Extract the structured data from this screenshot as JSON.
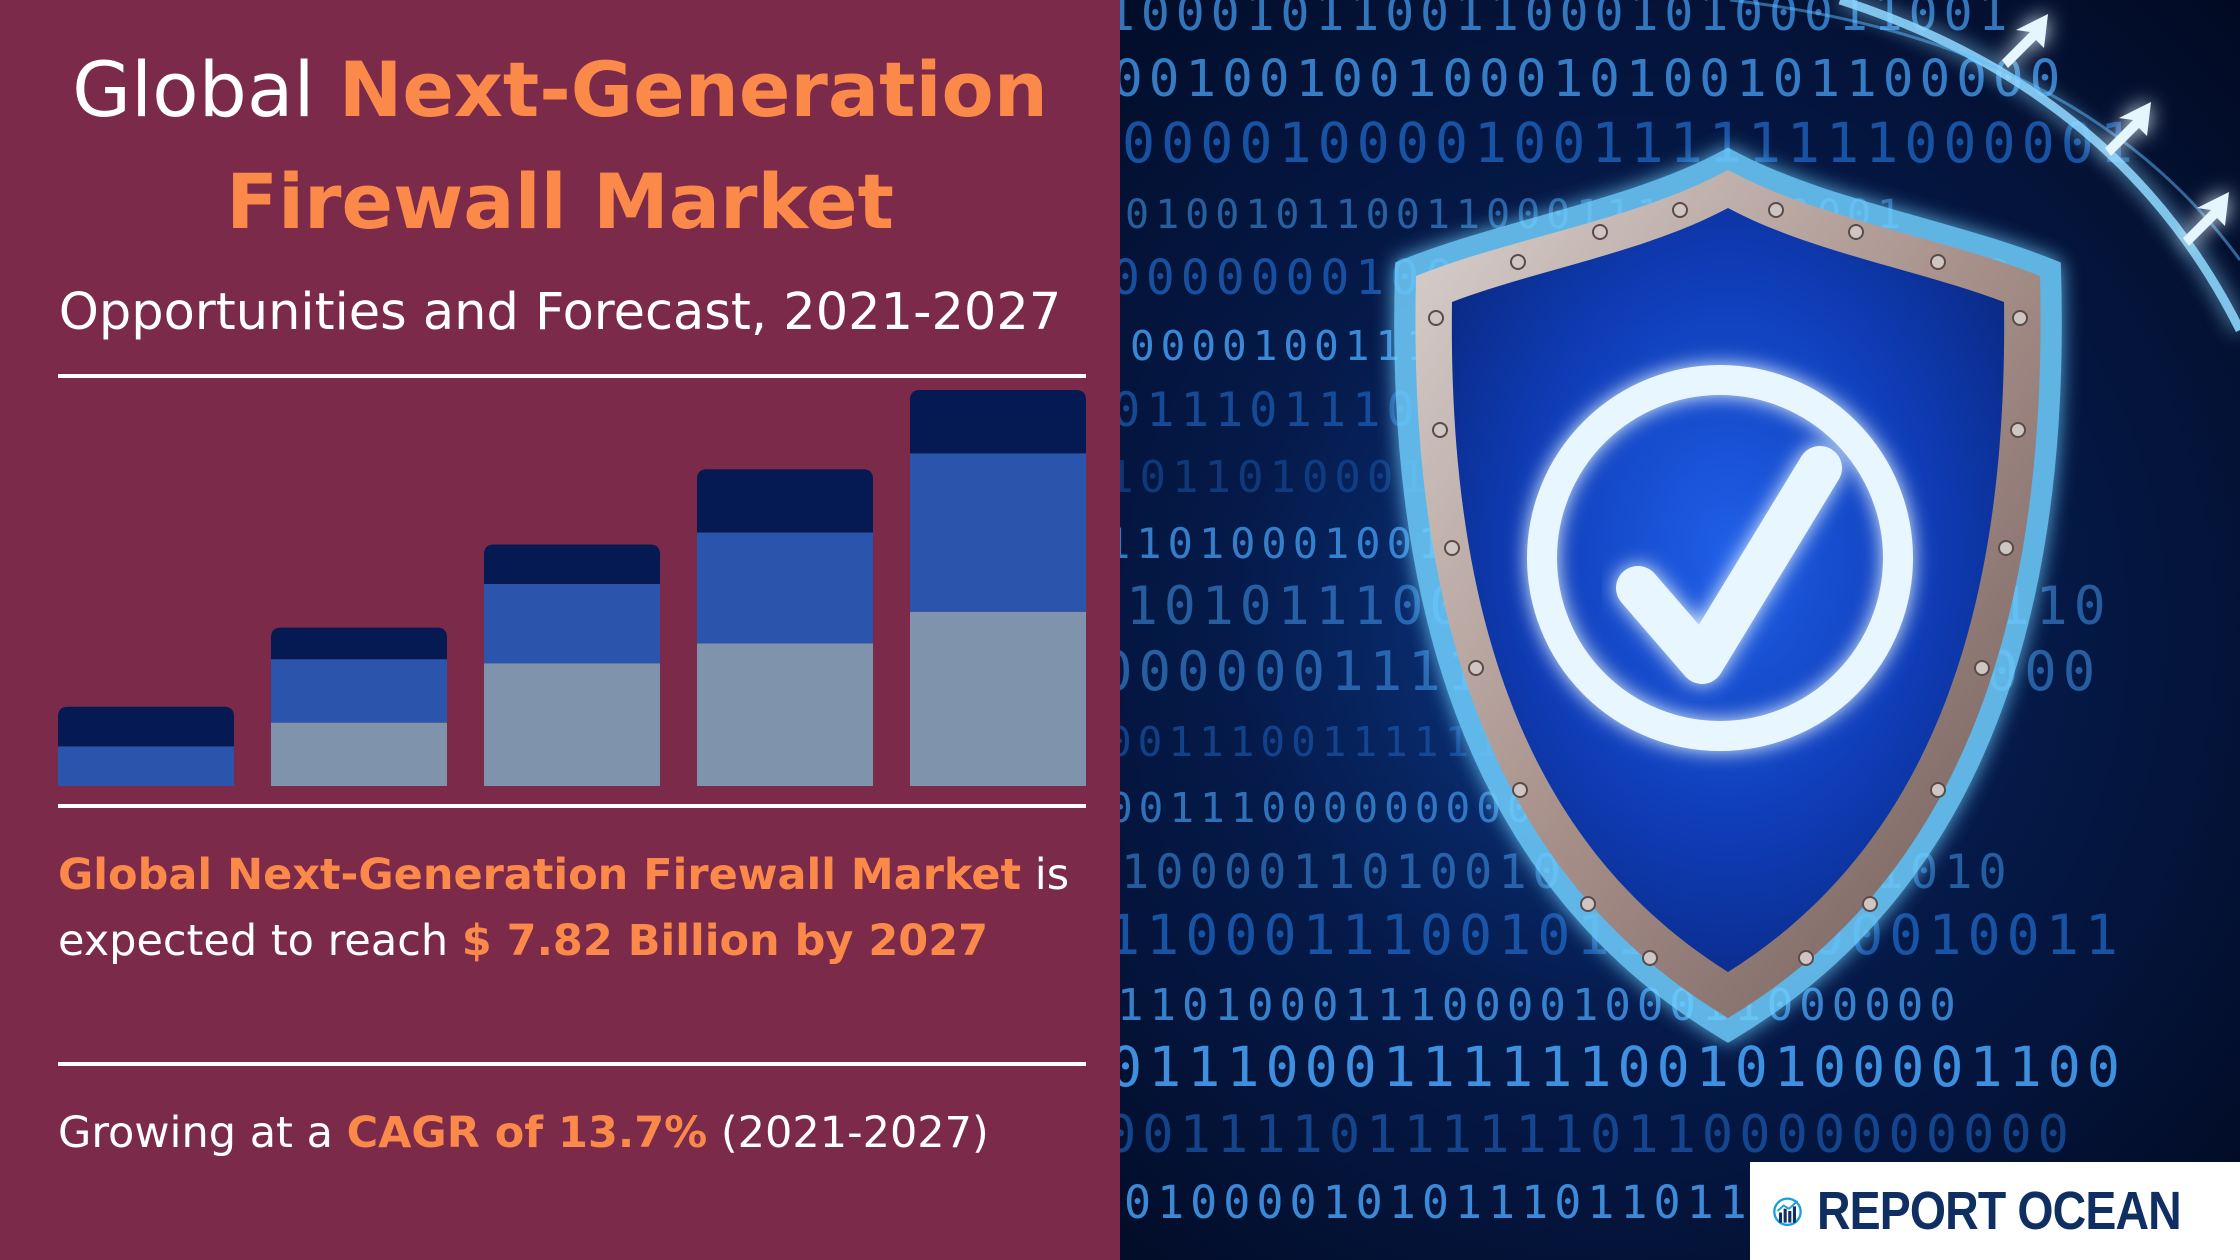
{
  "header": {
    "title_prefix": "Global",
    "title_highlight": "Next-Generation Firewall Market",
    "subtitle": "Opportunities and Forecast, 2021-2027"
  },
  "statement": {
    "market_name": "Global Next-Generation Firewall Market",
    "connector": " is expected to reach ",
    "value": "$ 7.82 Billion by 2027"
  },
  "growth": {
    "prefix": "Growing at a ",
    "cagr": "CAGR of 13.7%",
    "period": " (2021-2027)"
  },
  "brand": {
    "name": "REPORT OCEAN",
    "logo_icon": "chart-globe-icon"
  },
  "illustration": {
    "shield_icon": "shield-check-icon",
    "arrow_icon": "up-right-arrow-icon"
  },
  "colors": {
    "panel": "#7c2a49",
    "accent": "#fb8a4a",
    "bar_top": "#051a52",
    "bar_mid": "#2b55ad",
    "bar_base": "#7f93ad"
  },
  "chart_data": {
    "type": "bar",
    "stacked": true,
    "categories": [
      "",
      "",
      "",
      "",
      ""
    ],
    "series": [
      {
        "values": [
          0,
          1.6,
          3.1,
          3.6,
          4.4
        ]
      },
      {
        "values": [
          1.0,
          1.6,
          2.0,
          2.8,
          4.0
        ]
      },
      {
        "values": [
          1.0,
          0.8,
          1.0,
          1.6,
          1.6
        ]
      }
    ],
    "ylim": [
      0,
      10
    ],
    "grid": false,
    "legend": "none"
  }
}
